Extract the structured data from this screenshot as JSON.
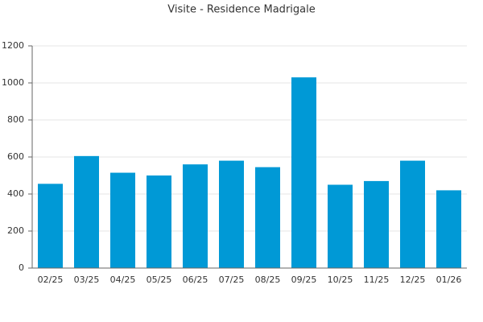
{
  "chart_data": {
    "type": "bar",
    "title": "Visite - Residence Madrigale",
    "categories": [
      "02/25",
      "03/25",
      "04/25",
      "05/25",
      "06/25",
      "07/25",
      "08/25",
      "09/25",
      "10/25",
      "11/25",
      "12/25",
      "01/26"
    ],
    "values": [
      455,
      605,
      515,
      500,
      560,
      580,
      545,
      1030,
      450,
      470,
      580,
      420
    ],
    "color": "#0099d6",
    "ylim": [
      0,
      1200
    ],
    "yticks": [
      0,
      200,
      400,
      600,
      800,
      1000,
      1200
    ],
    "grid": true
  }
}
